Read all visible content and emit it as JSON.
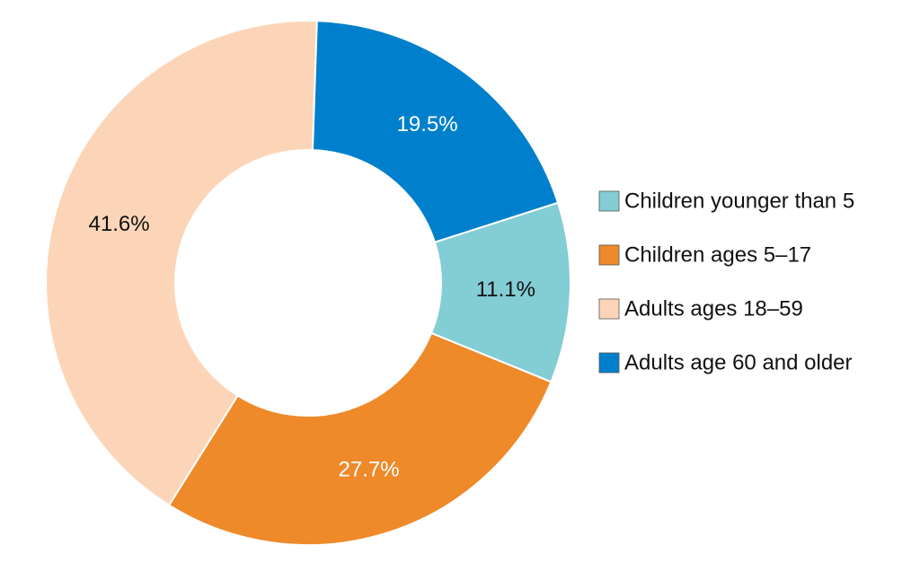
{
  "chart_data": {
    "type": "donut",
    "series": [
      {
        "name": "Children younger than 5",
        "color": "#83cdd5",
        "values": [
          11.1
        ],
        "value_labels": [
          "11.1%"
        ]
      },
      {
        "name": "Children ages 5–17",
        "color": "#ee8a2a",
        "values": [
          27.7
        ],
        "value_labels": [
          "27.7%"
        ]
      },
      {
        "name": "Adults ages 18–59",
        "color": "#fcd5b8",
        "values": [
          41.6
        ],
        "value_labels": [
          "41.6%"
        ]
      },
      {
        "name": "Adults age 60 and older",
        "color": "#0080cc",
        "values": [
          19.5
        ],
        "value_labels": [
          "19.5%"
        ]
      }
    ]
  }
}
